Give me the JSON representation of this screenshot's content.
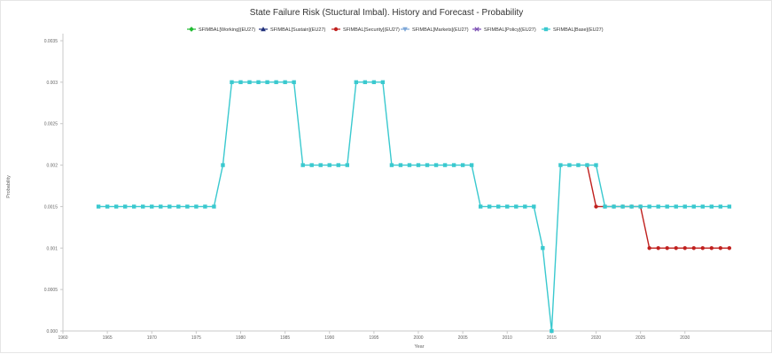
{
  "chart_data": {
    "type": "line",
    "title": "State Failure Risk (Stuctural Imbal). History and Forecast - Probability",
    "xlabel": "Year",
    "ylabel": "Probability",
    "xlim": [
      1960,
      2040
    ],
    "ylim": [
      0,
      0.0035
    ],
    "x_ticks": [
      1960,
      1965,
      1970,
      1975,
      1980,
      1985,
      1990,
      1995,
      2000,
      2005,
      2010,
      2015,
      2020,
      2025,
      2030
    ],
    "x_tick_labels": [
      "1960",
      "1965",
      "1970",
      "1975",
      "1980",
      "1985",
      "1990",
      "1995",
      "2000",
      "2005",
      "2010",
      "2015",
      "2020",
      "2025",
      "2030"
    ],
    "y_ticks": [
      0,
      0.0005,
      0.001,
      0.0015,
      0.002,
      0.0025,
      0.003,
      0.0035
    ],
    "y_tick_labels": [
      "0.000",
      "0.0005",
      "0.001",
      "0.0015",
      "0.002",
      "0.0025",
      "0.003",
      "0.0035"
    ],
    "grid": false,
    "legend_position": "top",
    "series": [
      {
        "name": "SFIMBAL[Working](EU27)",
        "color": "#22bb33",
        "marker": "diamond",
        "x": [],
        "y": []
      },
      {
        "name": "SFIMBAL[Sustain](EU27)",
        "color": "#1f2f7a",
        "marker": "triangle",
        "x": [],
        "y": []
      },
      {
        "name": "SFIMBAL[Security](EU27)",
        "color": "#c0201e",
        "marker": "circle",
        "x": [
          2019,
          2020,
          2021,
          2022,
          2023,
          2024,
          2025,
          2026,
          2027,
          2028,
          2029,
          2030,
          2031,
          2032,
          2033,
          2034,
          2035
        ],
        "y": [
          0.002,
          0.0015,
          0.0015,
          0.0015,
          0.0015,
          0.0015,
          0.0015,
          0.001,
          0.001,
          0.001,
          0.001,
          0.001,
          0.001,
          0.001,
          0.001,
          0.001,
          0.001
        ]
      },
      {
        "name": "SFIMBAL[Markets](EU27)",
        "color": "#7fa8d8",
        "marker": "triangle-down",
        "x": [],
        "y": []
      },
      {
        "name": "SFIMBAL[Policy](EU27)",
        "color": "#7b4fb3",
        "marker": "cross",
        "x": [],
        "y": []
      },
      {
        "name": "SFIMBAL[Base](EU27)",
        "color": "#3ac9cf",
        "marker": "square",
        "x": [
          1964,
          1965,
          1966,
          1967,
          1968,
          1969,
          1970,
          1971,
          1972,
          1973,
          1974,
          1975,
          1976,
          1977,
          1978,
          1979,
          1980,
          1981,
          1982,
          1983,
          1984,
          1985,
          1986,
          1987,
          1988,
          1989,
          1990,
          1991,
          1992,
          1993,
          1994,
          1995,
          1996,
          1997,
          1998,
          1999,
          2000,
          2001,
          2002,
          2003,
          2004,
          2005,
          2006,
          2007,
          2008,
          2009,
          2010,
          2011,
          2012,
          2013,
          2014,
          2015,
          2016,
          2017,
          2018,
          2019,
          2020,
          2021,
          2022,
          2023,
          2024,
          2025,
          2026,
          2027,
          2028,
          2029,
          2030,
          2031,
          2032,
          2033,
          2034,
          2035
        ],
        "y": [
          0.0015,
          0.0015,
          0.0015,
          0.0015,
          0.0015,
          0.0015,
          0.0015,
          0.0015,
          0.0015,
          0.0015,
          0.0015,
          0.0015,
          0.0015,
          0.0015,
          0.002,
          0.003,
          0.003,
          0.003,
          0.003,
          0.003,
          0.003,
          0.003,
          0.003,
          0.002,
          0.002,
          0.002,
          0.002,
          0.002,
          0.002,
          0.003,
          0.003,
          0.003,
          0.003,
          0.002,
          0.002,
          0.002,
          0.002,
          0.002,
          0.002,
          0.002,
          0.002,
          0.002,
          0.002,
          0.0015,
          0.0015,
          0.0015,
          0.0015,
          0.0015,
          0.0015,
          0.0015,
          0.001,
          0.0,
          0.002,
          0.002,
          0.002,
          0.002,
          0.002,
          0.0015,
          0.0015,
          0.0015,
          0.0015,
          0.0015,
          0.0015,
          0.0015,
          0.0015,
          0.0015,
          0.0015,
          0.0015,
          0.0015,
          0.0015,
          0.0015,
          0.0015
        ]
      }
    ]
  }
}
